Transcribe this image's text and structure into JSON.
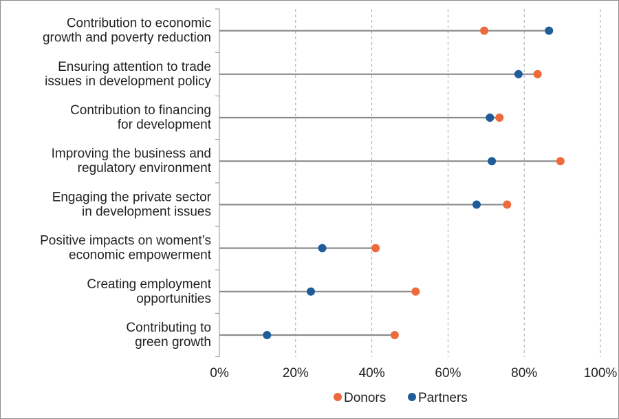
{
  "chart_data": {
    "type": "dumbbell",
    "categories": [
      [
        "Contribution to economic",
        "growth and poverty reduction"
      ],
      [
        "Ensuring attention to trade",
        "issues in development policy"
      ],
      [
        "Contribution to financing",
        "for development"
      ],
      [
        "Improving the business and",
        "regulatory environment"
      ],
      [
        "Engaging the private sector",
        "in development issues"
      ],
      [
        "Positive impacts on woment’s",
        "economic empowerment"
      ],
      [
        "Creating employment",
        "opportunities"
      ],
      [
        "Contributing to",
        "green growth"
      ]
    ],
    "series": [
      {
        "name": "Donors",
        "color": "#ee6a3c",
        "values": [
          69.5,
          83.5,
          73.5,
          89.5,
          75.5,
          41,
          51.5,
          46
        ]
      },
      {
        "name": "Partners",
        "color": "#1f5c99",
        "values": [
          86.5,
          78.5,
          71,
          71.5,
          67.5,
          27,
          24,
          12.5
        ]
      }
    ],
    "xlim": [
      0,
      100
    ],
    "x_ticks": [
      "0%",
      "20%",
      "40%",
      "60%",
      "80%",
      "100%"
    ],
    "grid": "vertical-dashed",
    "legend_position": "bottom",
    "connector_color": "#8c8c8c"
  }
}
